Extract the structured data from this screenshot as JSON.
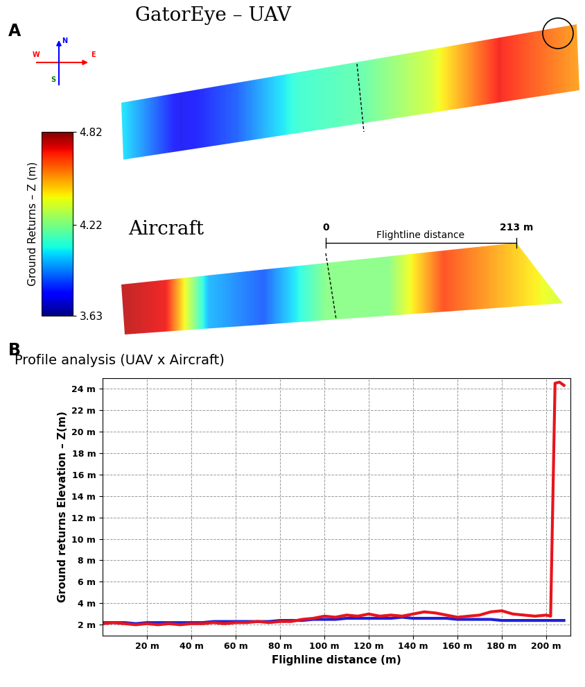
{
  "panel_labels": [
    "A",
    "B"
  ],
  "panel_a": {
    "uav_title": "GatorEye – UAV",
    "aircraft_title": "Aircraft",
    "compass": [
      "N",
      "E",
      "S",
      "W"
    ],
    "flightline": {
      "label": "Flightline distance",
      "start": "0",
      "end": "213 m"
    },
    "colorbar": {
      "label": "Ground Returns – Z (m)",
      "range": [
        3.63,
        4.82
      ],
      "ticks": [
        3.63,
        4.22,
        4.82
      ]
    }
  },
  "chart_data": {
    "type": "line",
    "title": "Profile analysis (UAV x Aircraft)",
    "x_label": "Flighline distance (m)",
    "y_label": "Ground returns Elevation – Z(m)",
    "x": [
      0,
      5,
      10,
      15,
      20,
      25,
      30,
      35,
      40,
      45,
      50,
      55,
      60,
      65,
      70,
      75,
      80,
      85,
      90,
      95,
      100,
      105,
      110,
      115,
      120,
      125,
      130,
      135,
      140,
      145,
      150,
      155,
      160,
      165,
      170,
      175,
      180,
      185,
      190,
      195,
      200,
      202,
      204,
      206,
      208
    ],
    "series": [
      {
        "color": "#1f1fd6",
        "line_style": "solid",
        "values": [
          2.2,
          2.2,
          2.2,
          2.1,
          2.2,
          2.2,
          2.2,
          2.2,
          2.2,
          2.2,
          2.3,
          2.3,
          2.3,
          2.3,
          2.3,
          2.3,
          2.4,
          2.4,
          2.4,
          2.5,
          2.5,
          2.5,
          2.6,
          2.6,
          2.6,
          2.6,
          2.6,
          2.7,
          2.6,
          2.6,
          2.6,
          2.6,
          2.5,
          2.5,
          2.5,
          2.5,
          2.4,
          2.4,
          2.4,
          2.4,
          2.4,
          2.4,
          2.4,
          2.4,
          2.4
        ]
      },
      {
        "color": "#e8141c",
        "line_style": "solid",
        "values": [
          2.1,
          2.2,
          2.1,
          2.0,
          2.1,
          2.0,
          2.1,
          2.0,
          2.1,
          2.1,
          2.2,
          2.1,
          2.2,
          2.2,
          2.3,
          2.2,
          2.3,
          2.3,
          2.5,
          2.6,
          2.8,
          2.7,
          2.9,
          2.8,
          3.0,
          2.8,
          2.9,
          2.8,
          3.0,
          3.2,
          3.1,
          2.9,
          2.7,
          2.8,
          2.9,
          3.2,
          3.3,
          3.0,
          2.9,
          2.8,
          2.9,
          2.8,
          24.5,
          24.6,
          24.3
        ]
      }
    ],
    "xlim": [
      0,
      211
    ],
    "ylim": [
      1,
      25
    ],
    "xticks": [
      {
        "value": 20,
        "label": "20 m"
      },
      {
        "value": 40,
        "label": "40 m"
      },
      {
        "value": 60,
        "label": "60 m"
      },
      {
        "value": 80,
        "label": "80 m"
      },
      {
        "value": 100,
        "label": "100 m"
      },
      {
        "value": 120,
        "label": "120 m"
      },
      {
        "value": 140,
        "label": "140 m"
      },
      {
        "value": 160,
        "label": "160 m"
      },
      {
        "value": 180,
        "label": "180 m"
      },
      {
        "value": 200,
        "label": "200 m"
      }
    ],
    "yticks": [
      {
        "value": 2,
        "label": "2 m"
      },
      {
        "value": 4,
        "label": "4 m"
      },
      {
        "value": 6,
        "label": "6 m"
      },
      {
        "value": 8,
        "label": "8 m"
      },
      {
        "value": 10,
        "label": "10 m"
      },
      {
        "value": 12,
        "label": "12 m"
      },
      {
        "value": 14,
        "label": "14 m"
      },
      {
        "value": 16,
        "label": "16 m"
      },
      {
        "value": 18,
        "label": "18 m"
      },
      {
        "value": 20,
        "label": "20 m"
      },
      {
        "value": 22,
        "label": "22 m"
      },
      {
        "value": 24,
        "label": "24 m"
      }
    ],
    "grid": true
  }
}
